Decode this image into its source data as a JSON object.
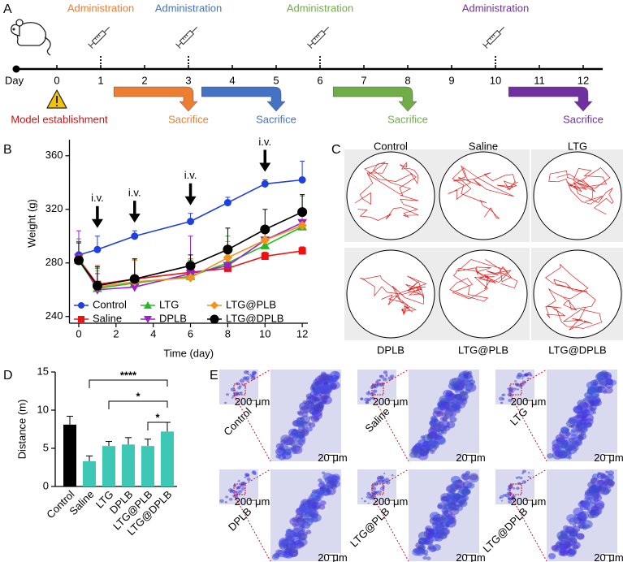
{
  "panel_labels": [
    "A",
    "B",
    "C",
    "D",
    "E"
  ],
  "timeline": {
    "day_label": "Day",
    "days": [
      0,
      1,
      2,
      3,
      4,
      5,
      6,
      7,
      8,
      9,
      10,
      11,
      12
    ],
    "start_label": "Model establishment",
    "events": [
      {
        "label": "Administration",
        "day": 1,
        "sacrifice_label": "Sacrifice",
        "sacrifice_day": 3,
        "color": "#ed7d31"
      },
      {
        "label": "Administration",
        "day": 3,
        "sacrifice_label": "Sacrifice",
        "sacrifice_day": 5,
        "color": "#4472c4"
      },
      {
        "label": "Administration",
        "day": 6,
        "sacrifice_label": "Sacrifice",
        "sacrifice_day": 8,
        "color": "#70ad47"
      },
      {
        "label": "Administration",
        "day": 10,
        "sacrifice_label": "Sacrifice",
        "sacrifice_day": 12,
        "color": "#7030a0"
      }
    ]
  },
  "chart_data": [
    {
      "type": "line",
      "xlabel": "Time (day)",
      "ylabel": "Weight (g)",
      "x": [
        0,
        1,
        3,
        6,
        8,
        10,
        12
      ],
      "xlim": [
        -0.5,
        12.3
      ],
      "xticks": [
        0,
        2,
        4,
        6,
        8,
        10,
        12
      ],
      "ylim": [
        235,
        372
      ],
      "yticks": [
        240,
        280,
        320,
        360
      ],
      "series": [
        {
          "name": "Control",
          "color": "#1f3fe0",
          "marker": "circle",
          "values": [
            286,
            290,
            300,
            311,
            325,
            339,
            342
          ],
          "errors": [
            10,
            10,
            4,
            6,
            4,
            3,
            14
          ]
        },
        {
          "name": "Saline",
          "color": "#ee1111",
          "marker": "square",
          "values": [
            283,
            264,
            268,
            273,
            276,
            285,
            289
          ],
          "errors": [
            12,
            14,
            15,
            10,
            8,
            3,
            3
          ]
        },
        {
          "name": "LTG",
          "color": "#22bb22",
          "marker": "triangle",
          "values": [
            282,
            261,
            265,
            270,
            280,
            293,
            307
          ],
          "errors": [
            16,
            15,
            18,
            12,
            20,
            12,
            23
          ]
        },
        {
          "name": "DPLB",
          "color": "#9922cc",
          "marker": "triangle-down",
          "values": [
            284,
            260,
            262,
            272,
            278,
            297,
            310
          ],
          "errors": [
            20,
            12,
            20,
            28,
            12,
            10,
            10
          ]
        },
        {
          "name": "LTG@PLB",
          "color": "#f0921e",
          "marker": "diamond",
          "values": [
            283,
            262,
            266,
            269,
            284,
            297,
            308
          ],
          "errors": [
            12,
            12,
            16,
            10,
            12,
            10,
            12
          ]
        },
        {
          "name": "LTG@DPLB",
          "color": "#000000",
          "marker": "big-circle",
          "values": [
            282,
            263,
            268,
            278,
            290,
            305,
            318
          ],
          "errors": [
            13,
            14,
            15,
            8,
            16,
            15,
            13
          ]
        }
      ],
      "legend": "bottom",
      "annotations": [
        {
          "text": "i.v.",
          "x": 1
        },
        {
          "text": "i.v.",
          "x": 3
        },
        {
          "text": "i.v.",
          "x": 6
        },
        {
          "text": "i.v.",
          "x": 10
        }
      ]
    },
    {
      "type": "bar",
      "ylabel": "Distance (m)",
      "categories": [
        "Control",
        "Saline",
        "LTG",
        "DPLB",
        "LTG@PLB",
        "LTG@DPLB"
      ],
      "values": [
        8.1,
        3.3,
        5.3,
        5.5,
        5.3,
        7.2
      ],
      "errors": [
        1.1,
        0.7,
        0.6,
        0.9,
        0.9,
        1.2
      ],
      "colors": [
        "#000000",
        "#3cc8b4",
        "#3cc8b4",
        "#3cc8b4",
        "#3cc8b4",
        "#3cc8b4"
      ],
      "ylim": [
        0,
        15
      ],
      "yticks": [
        0,
        5,
        10,
        15
      ],
      "significance": [
        {
          "label": "****",
          "from": 1,
          "to": 5
        },
        {
          "label": "*",
          "from": 2,
          "to": 5
        },
        {
          "label": "*",
          "from": 4,
          "to": 5
        }
      ]
    }
  ],
  "tracking": {
    "labels": [
      "Control",
      "Saline",
      "LTG",
      "DPLB",
      "LTG@PLB",
      "LTG@DPLB"
    ]
  },
  "histology": {
    "groups": [
      "Control",
      "Saline",
      "LTG",
      "DPLB",
      "LTG@PLB",
      "LTG@DPLB"
    ],
    "scale_overview": "200 μm",
    "scale_zoom": "20 μm"
  }
}
